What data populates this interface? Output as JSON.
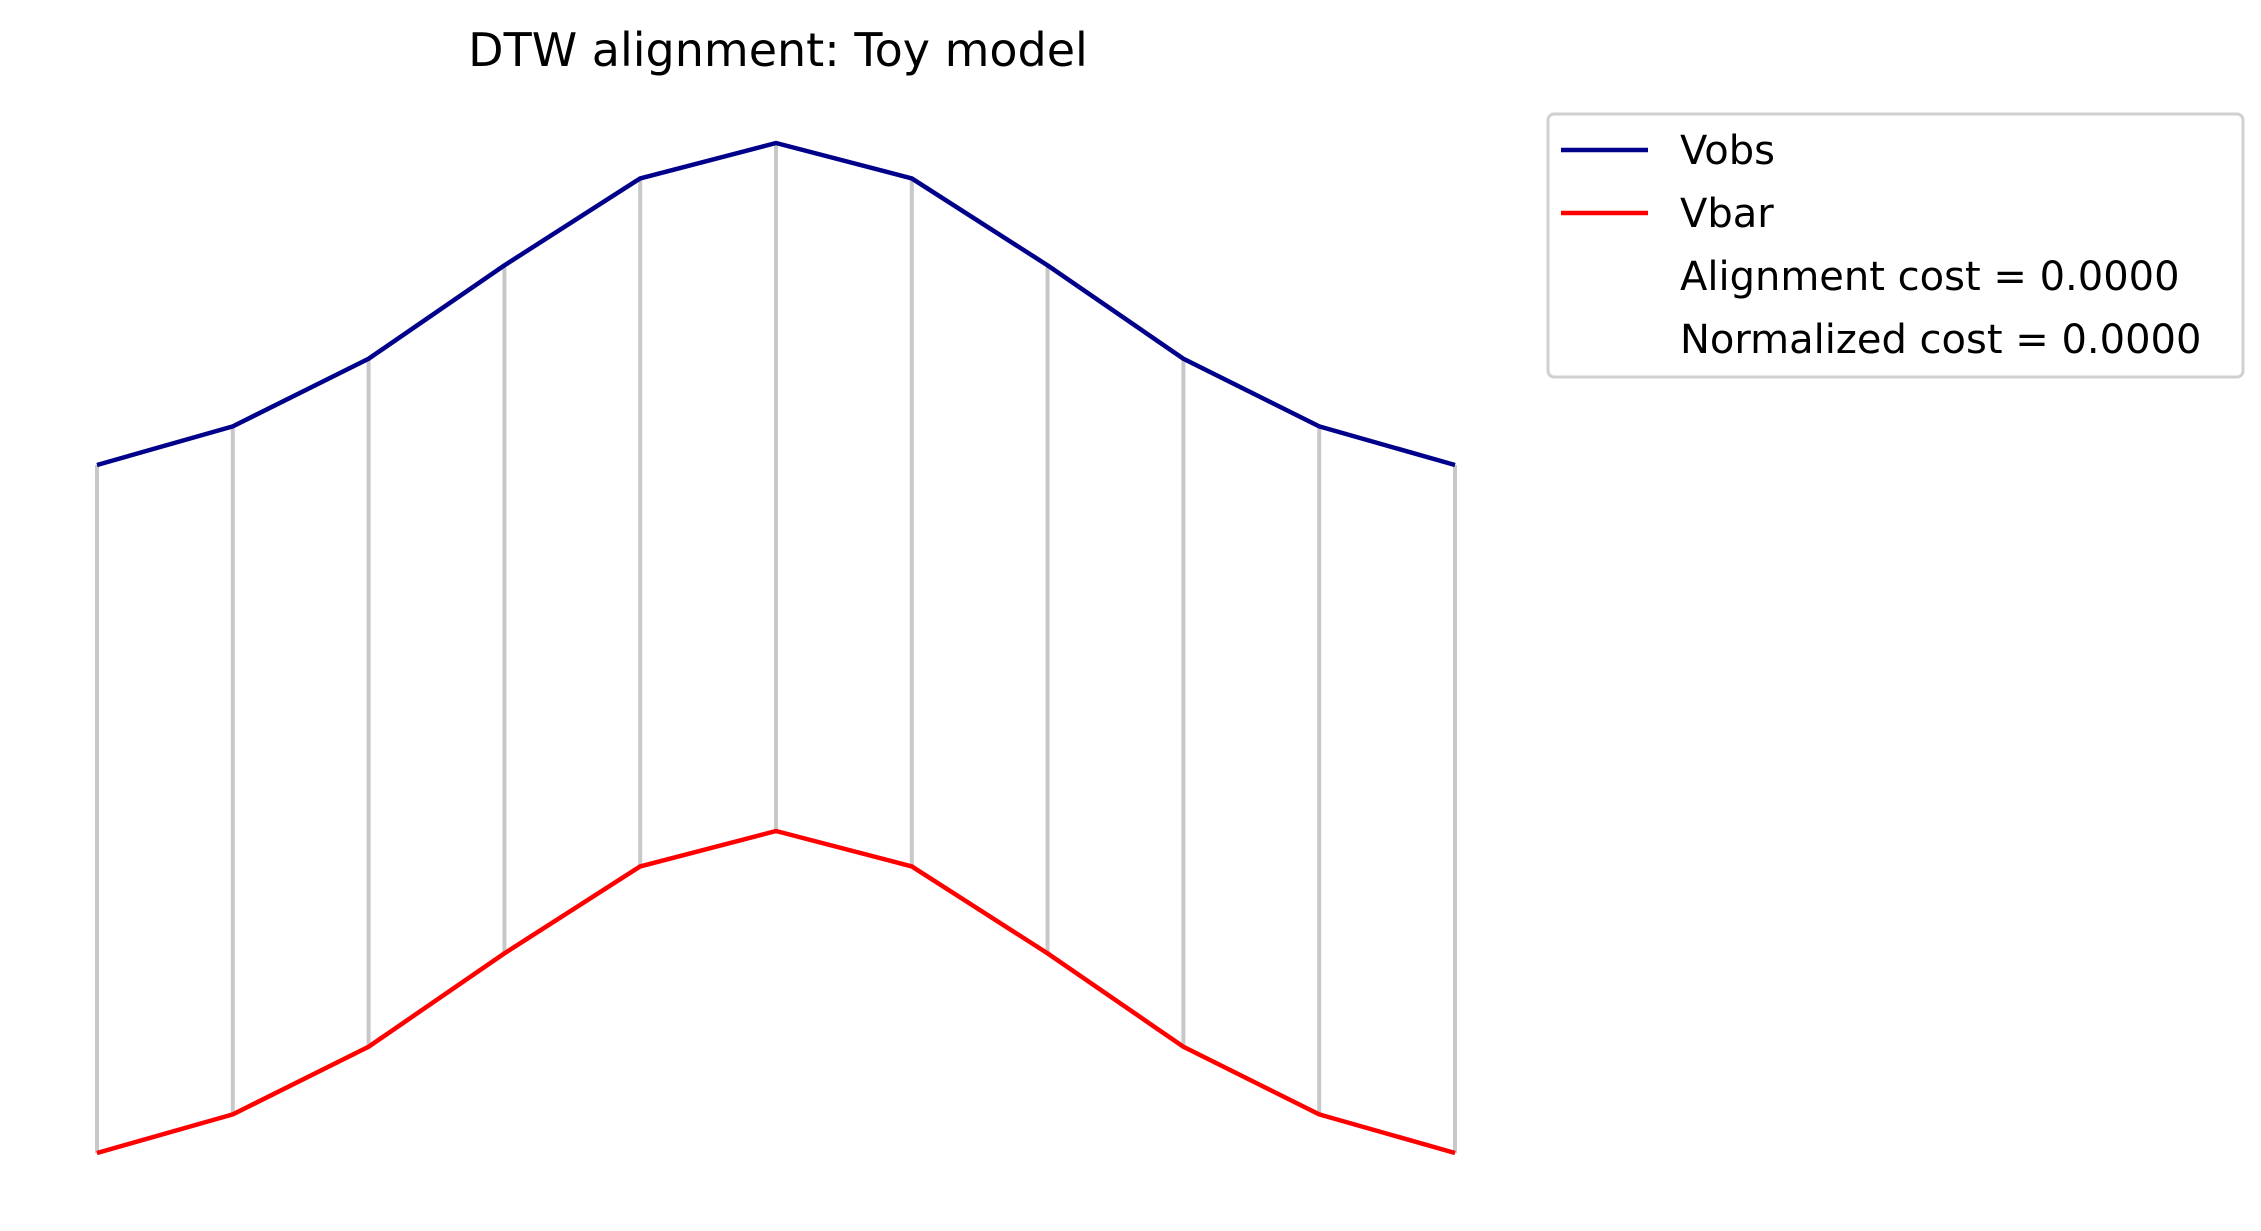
{
  "chart_data": {
    "type": "line",
    "title": "DTW alignment: Toy model",
    "xlabel": "",
    "ylabel": "",
    "axes_visible": false,
    "grid": false,
    "legend_position": "upper-right-outside",
    "x": [
      0,
      1,
      2,
      3,
      4,
      5,
      6,
      7,
      8,
      9,
      10
    ],
    "series": [
      {
        "name": "Vobs",
        "color": "#00008b",
        "values": [
          0.0,
          0.12,
          0.33,
          0.62,
          0.89,
          1.0,
          0.89,
          0.62,
          0.33,
          0.12,
          0.0
        ]
      },
      {
        "name": "Vbar",
        "color": "#ff0000",
        "values": [
          0.0,
          0.12,
          0.33,
          0.62,
          0.89,
          1.0,
          0.89,
          0.62,
          0.33,
          0.12,
          0.0
        ]
      }
    ],
    "alignment_pairs": [
      [
        0,
        0
      ],
      [
        1,
        1
      ],
      [
        2,
        2
      ],
      [
        3,
        3
      ],
      [
        4,
        4
      ],
      [
        5,
        5
      ],
      [
        6,
        6
      ],
      [
        7,
        7
      ],
      [
        8,
        8
      ],
      [
        9,
        9
      ],
      [
        10,
        10
      ]
    ],
    "alignment_line_color": "#c8c8c8",
    "legend_entries": [
      {
        "label": "Vobs",
        "color": "#00008b",
        "marker": "line"
      },
      {
        "label": "Vbar",
        "color": "#ff0000",
        "marker": "line"
      },
      {
        "label": "Alignment cost = 0.0000",
        "marker": "none"
      },
      {
        "label": "Normalized cost = 0.0000",
        "marker": "none"
      }
    ]
  }
}
